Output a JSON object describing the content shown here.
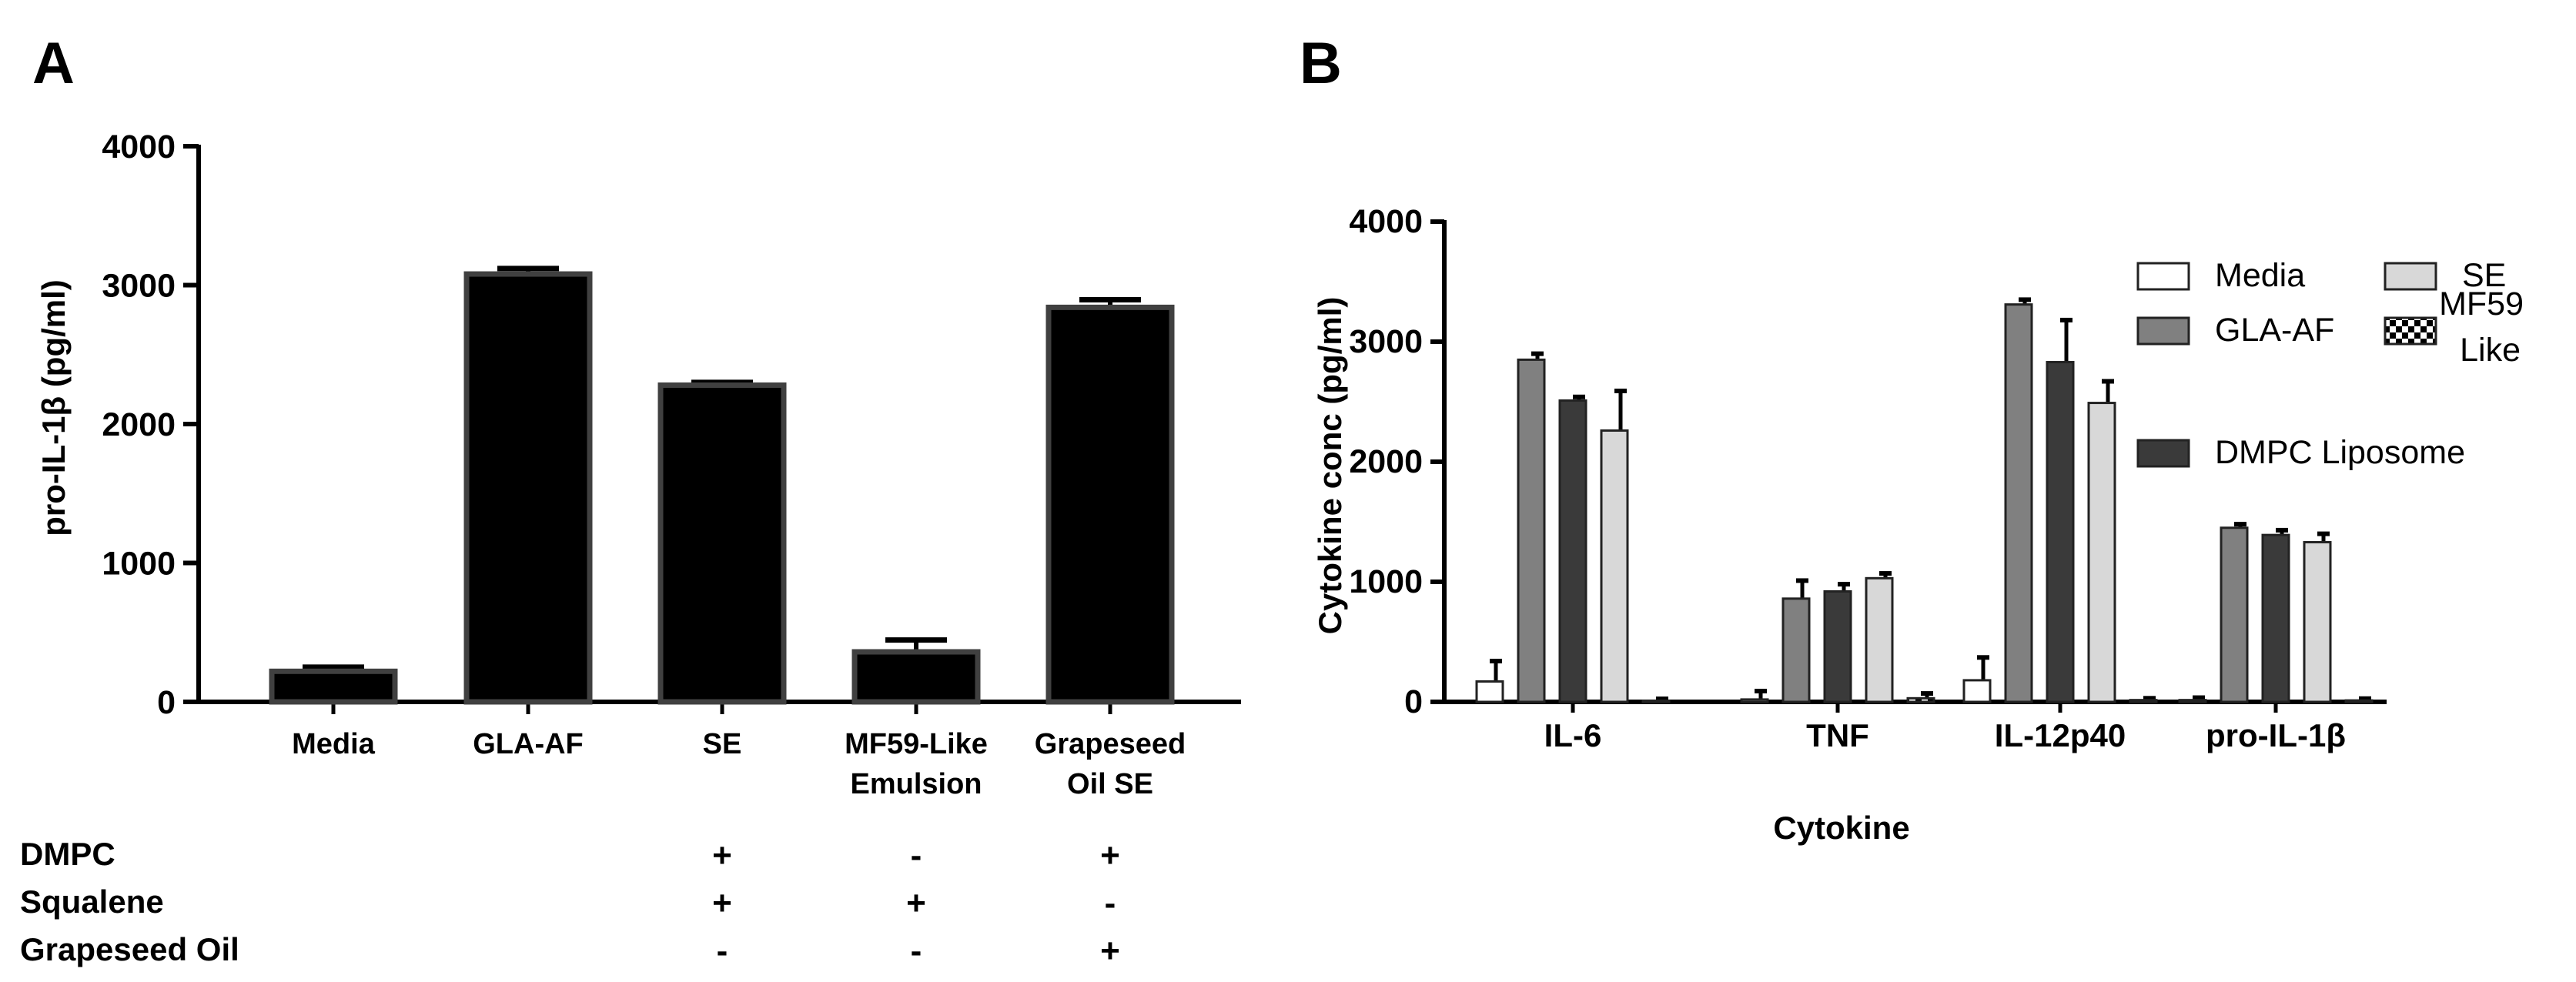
{
  "colors": {
    "panelA_bar": "#000000",
    "panelA_bar_edge": "#404040",
    "media": "#ffffff",
    "gla_af": "#808080",
    "dmpc_liposome": "#3a3a3a",
    "se": "#d8d8d8",
    "mf59_like": "checkered"
  },
  "panel_a": {
    "letter": "A",
    "treatments": {
      "rows": [
        {
          "label": "DMPC",
          "signs": [
            "",
            "",
            "+",
            "-",
            "+"
          ]
        },
        {
          "label": "Squalene",
          "signs": [
            "",
            "",
            "+",
            "+",
            "-"
          ]
        },
        {
          "label": "Grapeseed Oil",
          "signs": [
            "",
            "",
            "-",
            "-",
            "+"
          ]
        }
      ]
    }
  },
  "panel_b": {
    "letter": "B",
    "legend": {
      "items": [
        {
          "label": "Media",
          "swatch": "media"
        },
        {
          "label": "SE",
          "swatch": "se"
        },
        {
          "label": "GLA-AF",
          "swatch": "gla_af"
        },
        {
          "label": "MF59 Like",
          "swatch": "mf59_like"
        },
        {
          "label": "DMPC Liposome",
          "swatch": "dmpc_liposome"
        }
      ]
    }
  },
  "chart_data": [
    {
      "type": "bar",
      "title": "",
      "xlabel": "",
      "ylabel": "pro-IL-1β (pg/ml)",
      "ylim": [
        0,
        4000
      ],
      "yticks": [
        0,
        1000,
        2000,
        3000,
        4000
      ],
      "categories": [
        "Media",
        "GLA-AF",
        "SE",
        "MF59-Like Emulsion",
        "Grapeseed Oil SE"
      ],
      "values": [
        220,
        3080,
        2280,
        360,
        2840
      ],
      "errors": [
        30,
        40,
        20,
        85,
        55
      ],
      "grid": false
    },
    {
      "type": "bar",
      "title": "",
      "xlabel": "Cytokine",
      "ylabel": "Cytokine conc (pg/ml)",
      "ylim": [
        0,
        4000
      ],
      "yticks": [
        0,
        1000,
        2000,
        3000,
        4000
      ],
      "categories": [
        "IL-6",
        "TNF",
        "IL-12p40",
        "pro-IL-1β"
      ],
      "legend_position": "top-right",
      "grid": false,
      "series": [
        {
          "name": "Media",
          "values": [
            170,
            20,
            180,
            15
          ],
          "errors": [
            170,
            70,
            190,
            20
          ]
        },
        {
          "name": "GLA-AF",
          "values": [
            2850,
            860,
            3310,
            1450
          ],
          "errors": [
            50,
            150,
            40,
            30
          ]
        },
        {
          "name": "DMPC Liposome",
          "values": [
            2510,
            920,
            2830,
            1390
          ],
          "errors": [
            30,
            60,
            350,
            40
          ]
        },
        {
          "name": "SE",
          "values": [
            2260,
            1030,
            2490,
            1330
          ],
          "errors": [
            330,
            40,
            180,
            70
          ]
        },
        {
          "name": "MF59 Like",
          "values": [
            10,
            30,
            15,
            12
          ],
          "errors": [
            15,
            40,
            15,
            15
          ]
        }
      ]
    }
  ]
}
